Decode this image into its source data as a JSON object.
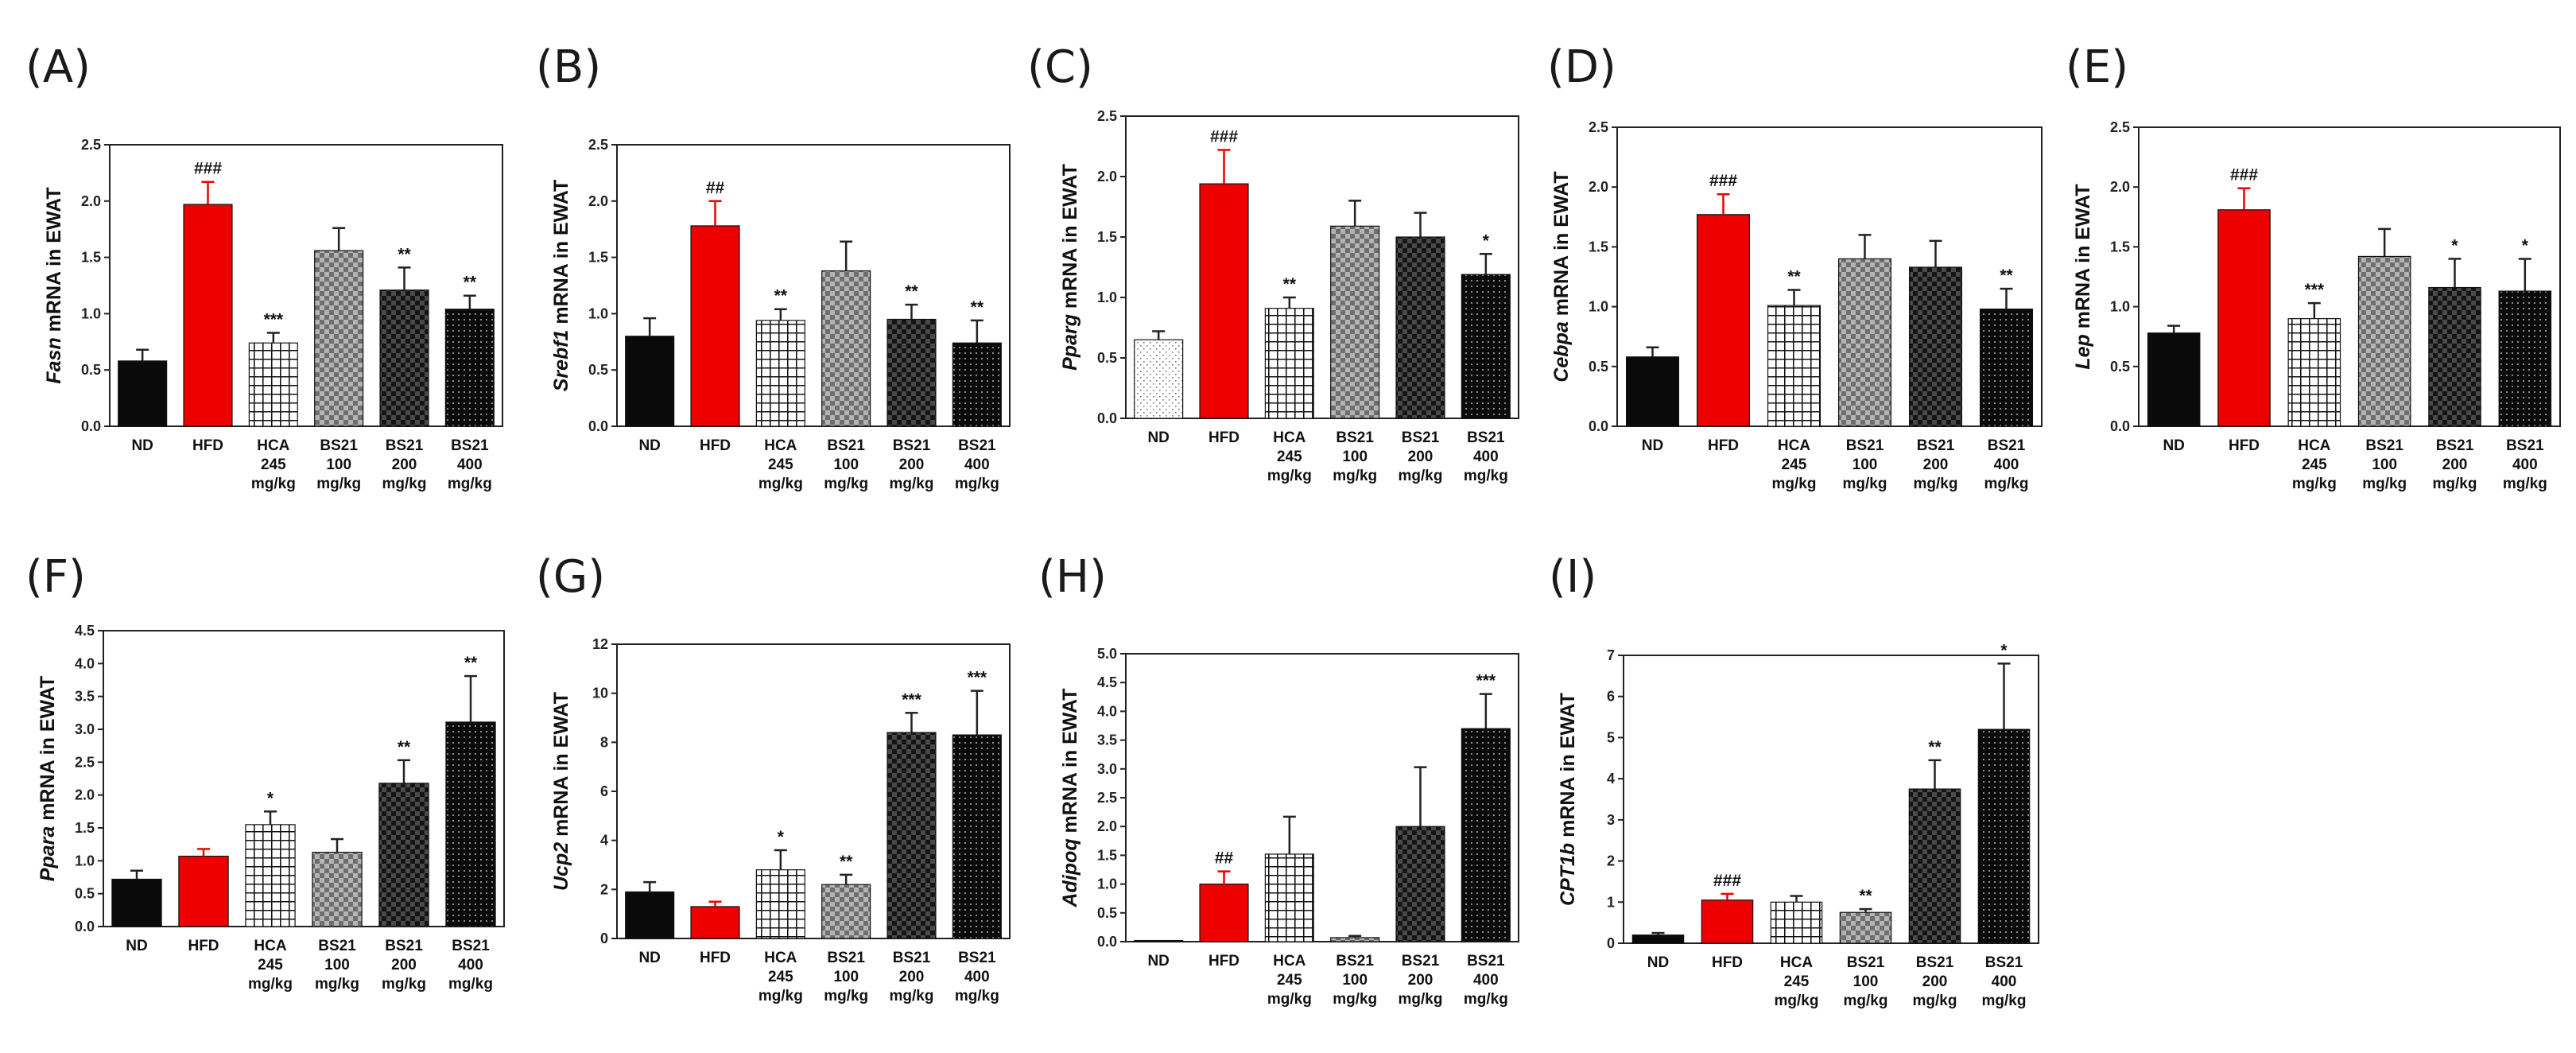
{
  "figure": {
    "categories": [
      [
        "ND"
      ],
      [
        "HFD"
      ],
      [
        "HCA",
        "245",
        "mg/kg"
      ],
      [
        "BS21",
        "100",
        "mg/kg"
      ],
      [
        "BS21",
        "200",
        "mg/kg"
      ],
      [
        "BS21",
        "400",
        "mg/kg"
      ]
    ],
    "colors": {
      "red": "#ee0000",
      "black": "#0a0a0a",
      "gray": "#9a9a9a",
      "white": "#ffffff",
      "axis": "#222222"
    }
  },
  "chart_data": [
    {
      "type": "bar",
      "panel_label": "(A)",
      "gene": "Fasn",
      "ylabel_suffix": " mRNA  in EWAT",
      "ylim": [
        0,
        2.5
      ],
      "yticks": [
        "0.0",
        "0.5",
        "1.0",
        "1.5",
        "2.0",
        "2.5"
      ],
      "categories": [
        "ND",
        "HFD",
        "HCA 245 mg/kg",
        "BS21 100 mg/kg",
        "BS21 200 mg/kg",
        "BS21 400 mg/kg"
      ],
      "values": [
        0.58,
        1.97,
        0.74,
        1.56,
        1.21,
        1.04
      ],
      "errors": [
        0.1,
        0.2,
        0.09,
        0.2,
        0.2,
        0.12
      ],
      "annotations": [
        "",
        "###",
        "***",
        "",
        "**",
        "**"
      ],
      "fills": [
        "solid",
        "red",
        "grid",
        "check",
        "darkcheck",
        "dots"
      ]
    },
    {
      "type": "bar",
      "panel_label": "(B)",
      "gene": "Srebf1",
      "ylabel_suffix": " mRNA in EWAT",
      "ylim": [
        0,
        2.5
      ],
      "yticks": [
        "0.0",
        "0.5",
        "1.0",
        "1.5",
        "2.0",
        "2.5"
      ],
      "categories": [
        "ND",
        "HFD",
        "HCA 245 mg/kg",
        "BS21 100 mg/kg",
        "BS21 200 mg/kg",
        "BS21 400 mg/kg"
      ],
      "values": [
        0.8,
        1.78,
        0.94,
        1.38,
        0.95,
        0.74
      ],
      "errors": [
        0.16,
        0.22,
        0.1,
        0.26,
        0.13,
        0.2
      ],
      "annotations": [
        "",
        "##",
        "**",
        "",
        "**",
        "**"
      ],
      "fills": [
        "solid",
        "red",
        "grid",
        "check",
        "darkcheck",
        "dots"
      ]
    },
    {
      "type": "bar",
      "panel_label": "(C)",
      "gene": "Pparg",
      "ylabel_suffix": " mRNA  in EWAT",
      "ylim": [
        0,
        2.5
      ],
      "yticks": [
        "0.0",
        "0.5",
        "1.0",
        "1.5",
        "2.0",
        "2.5"
      ],
      "categories": [
        "ND",
        "HFD",
        "HCA 245 mg/kg",
        "BS21 100 mg/kg",
        "BS21 200 mg/kg",
        "BS21 400 mg/kg"
      ],
      "values": [
        0.65,
        1.94,
        0.91,
        1.59,
        1.5,
        1.19
      ],
      "errors": [
        0.07,
        0.28,
        0.09,
        0.21,
        0.2,
        0.17
      ],
      "annotations": [
        "",
        "###",
        "**",
        "",
        "",
        "*"
      ],
      "fills": [
        "dotwhite",
        "red",
        "grid",
        "check",
        "darkcheck",
        "dots"
      ]
    },
    {
      "type": "bar",
      "panel_label": "(D)",
      "gene": "Cebpa",
      "ylabel_suffix": " mRNA  in EWAT",
      "ylim": [
        0,
        2.5
      ],
      "yticks": [
        "0.0",
        "0.5",
        "1.0",
        "1.5",
        "2.0",
        "2.5"
      ],
      "categories": [
        "ND",
        "HFD",
        "HCA 245 mg/kg",
        "BS21 100 mg/kg",
        "BS21 200 mg/kg",
        "BS21 400 mg/kg"
      ],
      "values": [
        0.58,
        1.77,
        1.01,
        1.4,
        1.33,
        0.98
      ],
      "errors": [
        0.08,
        0.17,
        0.13,
        0.2,
        0.22,
        0.17
      ],
      "annotations": [
        "",
        "###",
        "**",
        "",
        "",
        "**"
      ],
      "fills": [
        "solid",
        "red",
        "grid",
        "check",
        "darkcheck",
        "dots"
      ]
    },
    {
      "type": "bar",
      "panel_label": "(E)",
      "gene": "Lep",
      "ylabel_suffix": " mRNA in EWAT",
      "ylim": [
        0,
        2.5
      ],
      "yticks": [
        "0.0",
        "0.5",
        "1.0",
        "1.5",
        "2.0",
        "2.5"
      ],
      "categories": [
        "ND",
        "HFD",
        "HCA 245 mg/kg",
        "BS21 100 mg/kg",
        "BS21 200 mg/kg",
        "BS21 400 mg/kg"
      ],
      "values": [
        0.78,
        1.81,
        0.9,
        1.42,
        1.16,
        1.13
      ],
      "errors": [
        0.06,
        0.18,
        0.13,
        0.23,
        0.24,
        0.27
      ],
      "annotations": [
        "",
        "###",
        "***",
        "",
        "*",
        "*"
      ],
      "fills": [
        "solid",
        "red",
        "grid",
        "check",
        "darkcheck",
        "dots"
      ]
    },
    {
      "type": "bar",
      "panel_label": "(F)",
      "gene": "Ppara",
      "ylabel_suffix": " mRNA in EWAT",
      "ylim": [
        0,
        4.5
      ],
      "yticks": [
        "0.0",
        "0.5",
        "1.0",
        "1.5",
        "2.0",
        "2.5",
        "3.0",
        "3.5",
        "4.0",
        "4.5"
      ],
      "categories": [
        "ND",
        "HFD",
        "HCA 245 mg/kg",
        "BS21 100 mg/kg",
        "BS21 200 mg/kg",
        "BS21 400 mg/kg"
      ],
      "values": [
        0.72,
        1.07,
        1.55,
        1.13,
        2.18,
        3.11
      ],
      "errors": [
        0.13,
        0.11,
        0.2,
        0.2,
        0.35,
        0.7
      ],
      "annotations": [
        "",
        "",
        "*",
        "",
        "**",
        "**"
      ],
      "fills": [
        "solid",
        "red",
        "grid",
        "check",
        "darkcheck",
        "dots"
      ]
    },
    {
      "type": "bar",
      "panel_label": "(G)",
      "gene": "Ucp2",
      "ylabel_suffix": " mRNA  in EWAT",
      "ylim": [
        0,
        12
      ],
      "yticks": [
        "0",
        "2",
        "4",
        "6",
        "8",
        "10",
        "12"
      ],
      "categories": [
        "ND",
        "HFD",
        "HCA 245 mg/kg",
        "BS21 100 mg/kg",
        "BS21 200 mg/kg",
        "BS21 400 mg/kg"
      ],
      "values": [
        1.9,
        1.3,
        2.8,
        2.2,
        8.4,
        8.3
      ],
      "errors": [
        0.4,
        0.2,
        0.8,
        0.4,
        0.8,
        1.8
      ],
      "annotations": [
        "",
        "",
        "*",
        "**",
        "***",
        "***"
      ],
      "fills": [
        "solid",
        "red",
        "grid",
        "check",
        "darkcheck",
        "dots"
      ]
    },
    {
      "type": "bar",
      "panel_label": "(H)",
      "gene": "Adipoq",
      "ylabel_suffix": " mRNA in EWAT",
      "ylim": [
        0,
        5.0
      ],
      "yticks": [
        "0.0",
        "0.5",
        "1.0",
        "1.5",
        "2.0",
        "2.5",
        "3.0",
        "3.5",
        "4.0",
        "4.5",
        "5.0"
      ],
      "categories": [
        "ND",
        "HFD",
        "HCA 245 mg/kg",
        "BS21 100 mg/kg",
        "BS21 200 mg/kg",
        "BS21 400 mg/kg"
      ],
      "values": [
        0.02,
        1.0,
        1.52,
        0.07,
        2.0,
        3.7
      ],
      "errors": [
        0.0,
        0.22,
        0.65,
        0.03,
        1.03,
        0.6
      ],
      "annotations": [
        "",
        "##",
        "",
        "",
        "",
        "***"
      ],
      "fills": [
        "solid",
        "red",
        "grid",
        "check",
        "darkcheck",
        "dots"
      ]
    },
    {
      "type": "bar",
      "panel_label": "(I)",
      "gene": "CPT1b",
      "ylabel_suffix": " mRNA  in EWAT",
      "ylim": [
        0,
        7
      ],
      "yticks": [
        "0",
        "1",
        "2",
        "3",
        "4",
        "5",
        "6",
        "7"
      ],
      "categories": [
        "ND",
        "HFD",
        "HCA 245 mg/kg",
        "BS21 100 mg/kg",
        "BS21 200 mg/kg",
        "BS21 400 mg/kg"
      ],
      "values": [
        0.2,
        1.05,
        1.0,
        0.75,
        3.75,
        5.2
      ],
      "errors": [
        0.05,
        0.15,
        0.15,
        0.08,
        0.7,
        1.6
      ],
      "annotations": [
        "",
        "###",
        "",
        "**",
        "**",
        "*"
      ],
      "fills": [
        "solid",
        "red",
        "grid",
        "check",
        "darkcheck",
        "dots"
      ]
    }
  ]
}
